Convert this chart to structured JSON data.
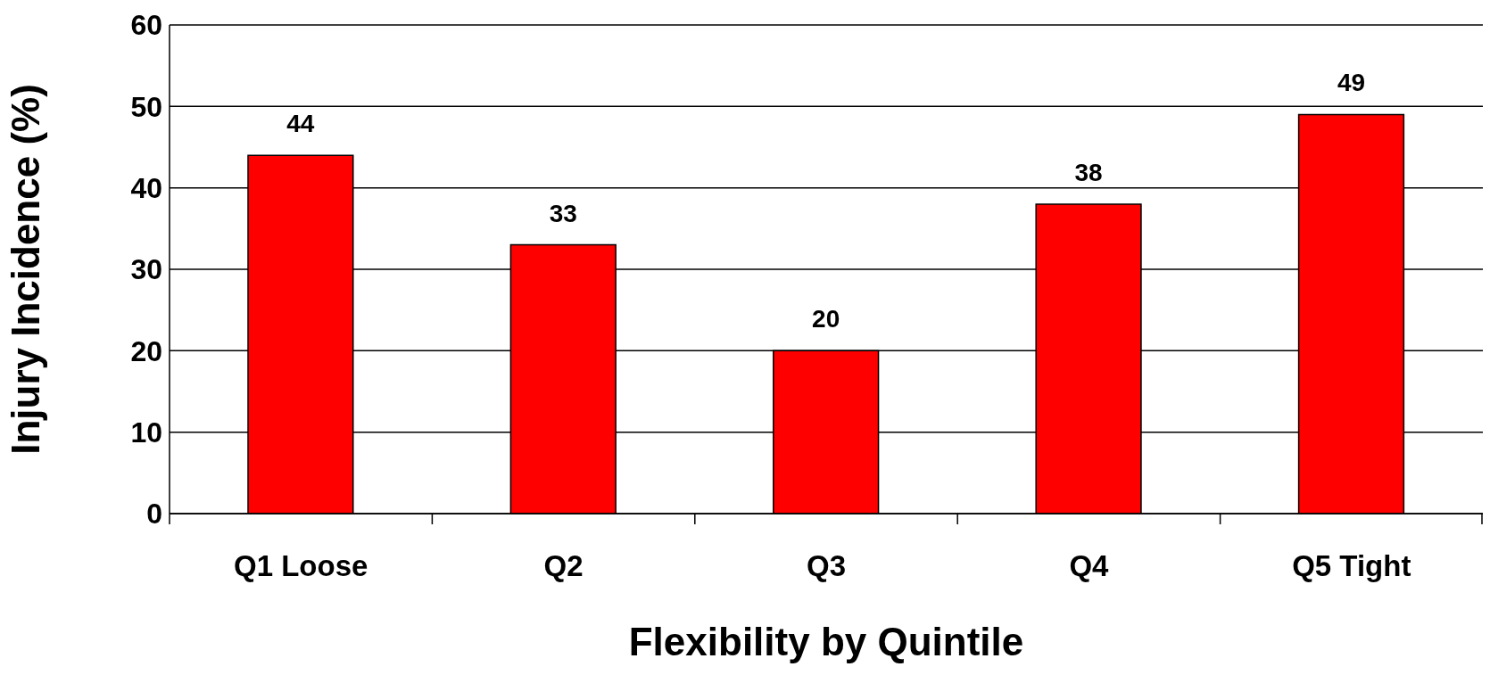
{
  "chart_data": {
    "type": "bar",
    "xlabel": "Flexibility by Quintile",
    "ylabel": "Injury Incidence (%)",
    "categories": [
      "Q1 Loose",
      "Q2",
      "Q3",
      "Q4",
      "Q5 Tight"
    ],
    "values": [
      44,
      33,
      20,
      38,
      49
    ],
    "color": "#ff0000",
    "ylim": [
      0,
      60
    ],
    "yticks": [
      0,
      10,
      20,
      30,
      40,
      50,
      60
    ],
    "grid": "y",
    "data_labels": true
  }
}
